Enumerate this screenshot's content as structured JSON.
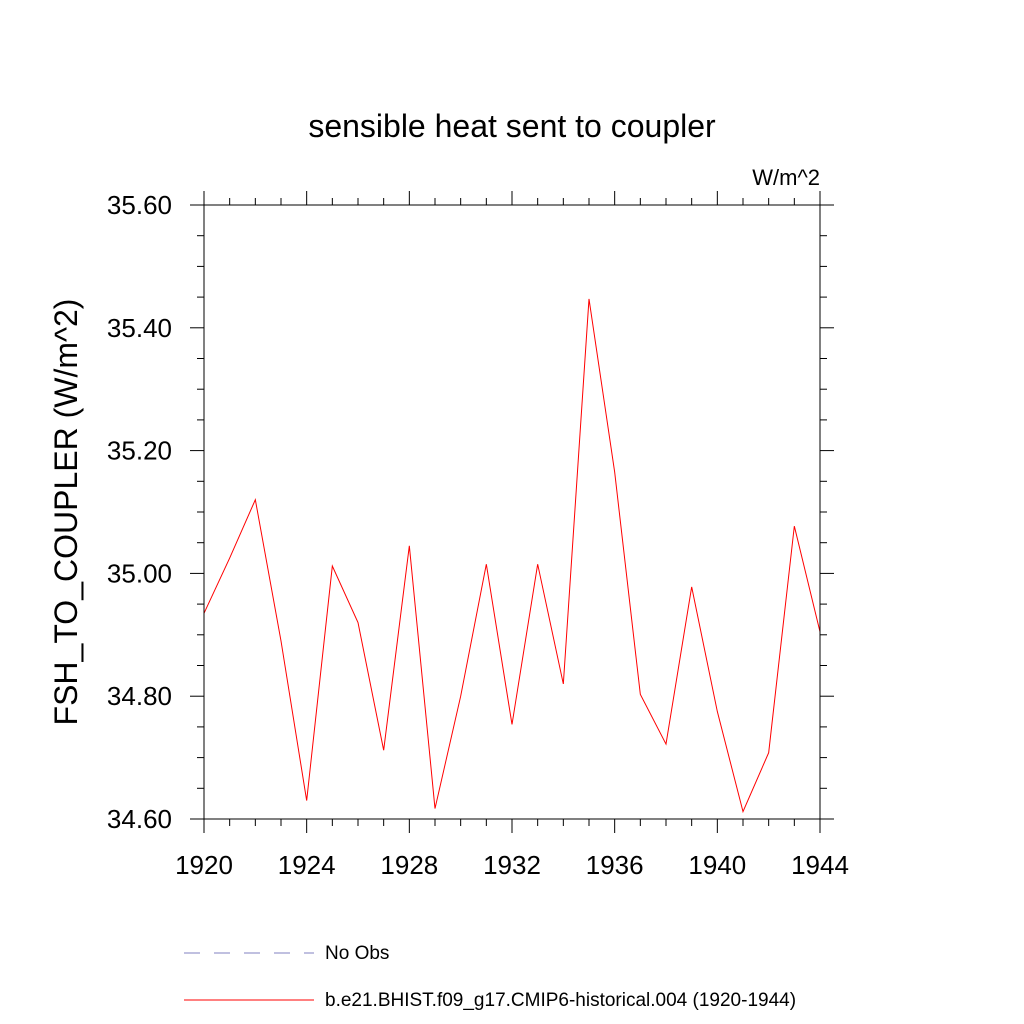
{
  "chart_data": {
    "type": "line",
    "title": "sensible heat sent to coupler",
    "units": "W/m^2",
    "ylabel": "FSH_TO_COUPLER  (W/m^2)",
    "xlabel": "",
    "xlim": [
      1920,
      1944
    ],
    "ylim": [
      34.6,
      35.6
    ],
    "x_ticks": [
      1920,
      1924,
      1928,
      1932,
      1936,
      1940,
      1944
    ],
    "y_ticks": [
      34.6,
      34.8,
      35.0,
      35.2,
      35.4,
      35.6
    ],
    "x_tick_labels": [
      "1920",
      "1924",
      "1928",
      "1932",
      "1936",
      "1940",
      "1944"
    ],
    "y_tick_labels": [
      "34.60",
      "34.80",
      "35.00",
      "35.20",
      "35.40",
      "35.60"
    ],
    "x_minor_step": 1,
    "y_minor_step": 0.05,
    "grid": false,
    "legend_position": "bottom",
    "series": [
      {
        "name": "No Obs",
        "color": "#8080c0",
        "dash": "dashed",
        "x": [],
        "values": []
      },
      {
        "name": "b.e21.BHIST.f09_g17.CMIP6-historical.004 (1920-1944)",
        "color": "#ff0000",
        "dash": "solid",
        "x": [
          1920,
          1921,
          1922,
          1923,
          1924,
          1925,
          1926,
          1927,
          1928,
          1929,
          1930,
          1931,
          1932,
          1933,
          1934,
          1935,
          1936,
          1937,
          1938,
          1939,
          1940,
          1941,
          1942,
          1943,
          1944
        ],
        "values": [
          34.935,
          35.025,
          35.12,
          34.89,
          34.63,
          35.012,
          34.92,
          34.712,
          35.045,
          34.617,
          34.8,
          35.015,
          34.754,
          35.015,
          34.82,
          35.447,
          35.165,
          34.803,
          34.722,
          34.978,
          34.775,
          34.612,
          34.708,
          35.077,
          34.905
        ]
      }
    ]
  }
}
